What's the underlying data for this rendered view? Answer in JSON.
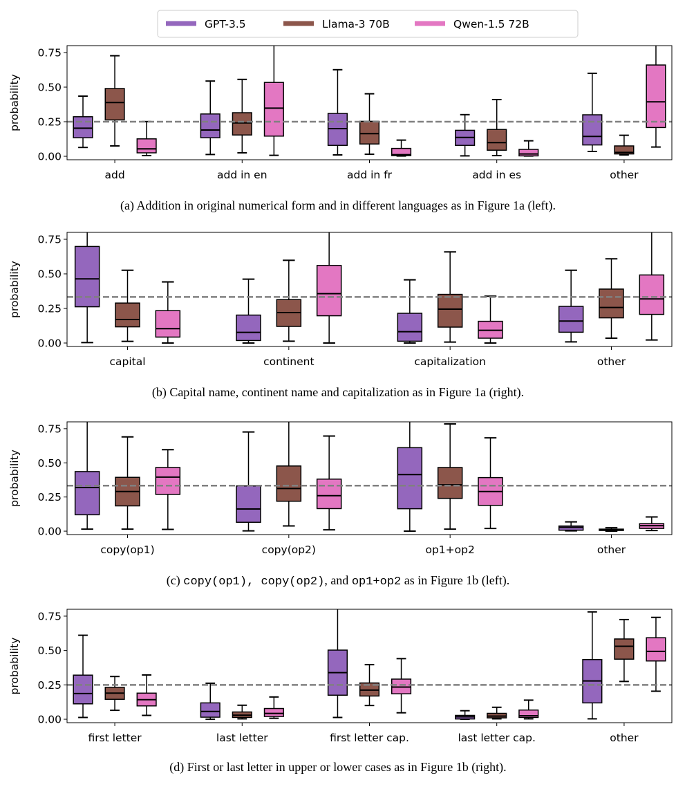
{
  "legend": {
    "placement": "top-center",
    "items": [
      {
        "label": "GPT-3.5",
        "color": "#9467bd"
      },
      {
        "label": "Llama-3 70B",
        "color": "#8c564b"
      },
      {
        "label": "Qwen-1.5 72B",
        "color": "#e377c2"
      }
    ]
  },
  "chart_data": [
    {
      "type": "box",
      "ylabel": "probability",
      "ylim": [
        -0.025,
        0.8
      ],
      "yticks": [
        "0.00",
        "0.25",
        "0.50",
        "0.75"
      ],
      "reference_line": 0.25,
      "categories": [
        "add",
        "add in en",
        "add in fr",
        "add in es",
        "other"
      ],
      "caption": [
        "(a) Addition in original numerical form and in different languages as in Figure 1a (left)."
      ],
      "series": [
        {
          "name": "GPT-3.5",
          "boxes": [
            [
              0.064,
              0.134,
              0.203,
              0.286,
              0.435
            ],
            [
              0.013,
              0.134,
              0.19,
              0.306,
              0.544
            ],
            [
              0.01,
              0.079,
              0.2,
              0.31,
              0.626
            ],
            [
              0.003,
              0.079,
              0.136,
              0.188,
              0.301
            ],
            [
              0.035,
              0.082,
              0.144,
              0.3,
              0.6
            ]
          ]
        },
        {
          "name": "Llama-3 70B",
          "boxes": [
            [
              0.075,
              0.263,
              0.389,
              0.49,
              0.727
            ],
            [
              0.025,
              0.154,
              0.241,
              0.315,
              0.556
            ],
            [
              0.015,
              0.089,
              0.164,
              0.253,
              0.452
            ],
            [
              0.005,
              0.044,
              0.099,
              0.194,
              0.41
            ],
            [
              0.01,
              0.017,
              0.028,
              0.075,
              0.152
            ]
          ]
        },
        {
          "name": "Qwen-1.5 72B",
          "boxes": [
            [
              0.005,
              0.025,
              0.054,
              0.126,
              0.251
            ],
            [
              0.007,
              0.146,
              0.348,
              0.534,
              1.0
            ],
            [
              0.002,
              0.005,
              0.012,
              0.057,
              0.117
            ],
            [
              0.002,
              0.003,
              0.017,
              0.05,
              0.112
            ],
            [
              0.067,
              0.208,
              0.394,
              0.66,
              1.0
            ]
          ]
        }
      ]
    },
    {
      "type": "box",
      "ylabel": "probability",
      "ylim": [
        -0.025,
        0.8
      ],
      "yticks": [
        "0.00",
        "0.25",
        "0.50",
        "0.75"
      ],
      "reference_line": 0.333,
      "categories": [
        "capital",
        "continent",
        "capitalization",
        "other"
      ],
      "caption": [
        "(b) Capital name, continent name and capitalization as in Figure 1a (right)."
      ],
      "series": [
        {
          "name": "GPT-3.5",
          "boxes": [
            [
              0.003,
              0.262,
              0.464,
              0.698,
              1.0
            ],
            [
              0.0,
              0.018,
              0.077,
              0.202,
              0.462
            ],
            [
              0.0,
              0.013,
              0.082,
              0.215,
              0.457
            ],
            [
              0.008,
              0.078,
              0.159,
              0.265,
              0.526
            ]
          ]
        },
        {
          "name": "Llama-3 70B",
          "boxes": [
            [
              0.012,
              0.117,
              0.17,
              0.289,
              0.526
            ],
            [
              0.013,
              0.12,
              0.22,
              0.314,
              0.598
            ],
            [
              0.007,
              0.115,
              0.245,
              0.352,
              0.659
            ],
            [
              0.035,
              0.182,
              0.257,
              0.39,
              0.609
            ]
          ]
        },
        {
          "name": "Qwen-1.5 72B",
          "boxes": [
            [
              0.0,
              0.043,
              0.104,
              0.234,
              0.442
            ],
            [
              0.0,
              0.197,
              0.357,
              0.561,
              1.0
            ],
            [
              0.0,
              0.035,
              0.092,
              0.157,
              0.339
            ],
            [
              0.022,
              0.207,
              0.319,
              0.492,
              1.0
            ]
          ]
        }
      ]
    },
    {
      "type": "box",
      "ylabel": "probability",
      "ylim": [
        -0.025,
        0.8
      ],
      "yticks": [
        "0.00",
        "0.25",
        "0.50",
        "0.75"
      ],
      "reference_line": 0.333,
      "categories": [
        "copy(op1)",
        "copy(op2)",
        "op1+op2",
        "other"
      ],
      "caption": [
        "(c) ",
        "copy(op1), copy(op2)",
        ", and ",
        "op1+op2",
        " as in Figure 1b (left)."
      ],
      "series": [
        {
          "name": "GPT-3.5",
          "boxes": [
            [
              0.015,
              0.12,
              0.319,
              0.436,
              1.0
            ],
            [
              0.002,
              0.065,
              0.162,
              0.331,
              0.726
            ],
            [
              0.0,
              0.164,
              0.414,
              0.611,
              1.0
            ],
            [
              0.002,
              0.007,
              0.028,
              0.038,
              0.068
            ]
          ]
        },
        {
          "name": "Llama-3 70B",
          "boxes": [
            [
              0.015,
              0.185,
              0.29,
              0.394,
              0.69
            ],
            [
              0.038,
              0.219,
              0.312,
              0.477,
              1.0
            ],
            [
              0.015,
              0.24,
              0.339,
              0.466,
              0.785
            ],
            [
              0.0,
              0.005,
              0.008,
              0.015,
              0.025
            ]
          ]
        },
        {
          "name": "Qwen-1.5 72B",
          "boxes": [
            [
              0.013,
              0.269,
              0.396,
              0.466,
              0.596
            ],
            [
              0.01,
              0.165,
              0.26,
              0.381,
              0.696
            ],
            [
              0.02,
              0.189,
              0.29,
              0.392,
              0.683
            ],
            [
              0.005,
              0.02,
              0.04,
              0.055,
              0.104
            ]
          ]
        }
      ]
    },
    {
      "type": "box",
      "ylabel": "probability",
      "ylim": [
        -0.025,
        0.8
      ],
      "yticks": [
        "0.00",
        "0.25",
        "0.50",
        "0.75"
      ],
      "reference_line": 0.25,
      "categories": [
        "first letter",
        "last letter",
        "first letter cap.",
        "last letter cap.",
        "other"
      ],
      "caption": [
        "(d) First or last letter in upper or lower cases as in Figure 1b (right)."
      ],
      "series": [
        {
          "name": "GPT-3.5",
          "boxes": [
            [
              0.013,
              0.112,
              0.187,
              0.321,
              0.611
            ],
            [
              0.0,
              0.015,
              0.057,
              0.119,
              0.262
            ],
            [
              0.013,
              0.175,
              0.339,
              0.503,
              1.0
            ],
            [
              0.0,
              0.002,
              0.018,
              0.028,
              0.062
            ],
            [
              0.003,
              0.119,
              0.279,
              0.434,
              0.781
            ]
          ]
        },
        {
          "name": "Llama-3 70B",
          "boxes": [
            [
              0.065,
              0.145,
              0.19,
              0.232,
              0.311
            ],
            [
              0.003,
              0.013,
              0.03,
              0.053,
              0.102
            ],
            [
              0.1,
              0.169,
              0.212,
              0.264,
              0.397
            ],
            [
              0.003,
              0.01,
              0.023,
              0.043,
              0.087
            ],
            [
              0.275,
              0.437,
              0.531,
              0.584,
              0.725
            ]
          ]
        },
        {
          "name": "Qwen-1.5 72B",
          "boxes": [
            [
              0.028,
              0.097,
              0.142,
              0.19,
              0.322
            ],
            [
              0.007,
              0.02,
              0.042,
              0.078,
              0.162
            ],
            [
              0.047,
              0.185,
              0.234,
              0.292,
              0.441
            ],
            [
              0.003,
              0.013,
              0.025,
              0.067,
              0.139
            ],
            [
              0.204,
              0.424,
              0.494,
              0.593,
              0.741
            ]
          ]
        }
      ]
    }
  ]
}
